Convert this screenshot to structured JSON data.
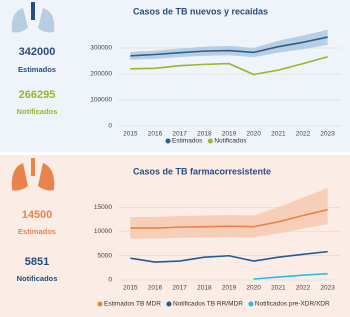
{
  "chart_data": [
    {
      "type": "line",
      "title": "Casos de TB nuevos y recaídas",
      "categories": [
        "2015",
        "2016",
        "2017",
        "2018",
        "2019",
        "2020",
        "2021",
        "2022",
        "2023"
      ],
      "series": [
        {
          "name": "Estimados",
          "color": "#2f5f8a",
          "band_color": "#a9c6e0",
          "values": [
            270000,
            275000,
            282000,
            288000,
            290000,
            283000,
            305000,
            322000,
            342000
          ],
          "low": [
            255000,
            258000,
            265000,
            270000,
            272000,
            265000,
            282000,
            295000,
            312000
          ],
          "high": [
            285000,
            290000,
            298000,
            305000,
            308000,
            300000,
            328000,
            348000,
            370000
          ]
        },
        {
          "name": "Notificados",
          "color": "#9bb52a",
          "values": [
            220000,
            222000,
            232000,
            237000,
            240000,
            198000,
            215000,
            240000,
            266295
          ]
        }
      ],
      "ylim": [
        0,
        350000
      ],
      "yticks": [
        0,
        100000,
        200000,
        300000
      ],
      "grid": true
    },
    {
      "type": "line",
      "title": "Casos  de TB farmacorresistente",
      "categories": [
        "2015",
        "2016",
        "2017",
        "2018",
        "2019",
        "2020",
        "2021",
        "2022",
        "2023"
      ],
      "series": [
        {
          "name": "Estimados TB MDR",
          "color": "#e8834e",
          "band_color": "#f6c8ae",
          "values": [
            10700,
            10700,
            10900,
            11000,
            11100,
            11000,
            12000,
            13300,
            14500
          ],
          "low": [
            8500,
            8500,
            8700,
            8800,
            8900,
            8800,
            9600,
            10600,
            11500
          ],
          "high": [
            13000,
            13000,
            13200,
            13300,
            13400,
            13300,
            15000,
            17000,
            19000
          ]
        },
        {
          "name": "Notificados TB RR/MDR",
          "color": "#1f5c99",
          "values": [
            4500,
            3700,
            3900,
            4700,
            5000,
            3900,
            4700,
            5300,
            5851
          ]
        },
        {
          "name": "Notificados pre-XDR/XDR",
          "color": "#20c0e0",
          "values": [
            null,
            null,
            null,
            null,
            null,
            200,
            600,
            1000,
            1300
          ]
        }
      ],
      "ylim": [
        0,
        20000
      ],
      "yticks": [
        0,
        5000,
        10000,
        15000
      ],
      "grid": true
    }
  ],
  "kpis": [
    [
      {
        "value": 342000,
        "label": "Estimados",
        "color": "#2b4c7e"
      },
      {
        "value": 266295,
        "label": "Notificados",
        "color": "#9bb52a"
      }
    ],
    [
      {
        "value": 14500,
        "label": "Estimados",
        "color": "#e8834e"
      },
      {
        "value": 5851,
        "label": "Notificados",
        "color": "#1f4e79"
      }
    ]
  ]
}
